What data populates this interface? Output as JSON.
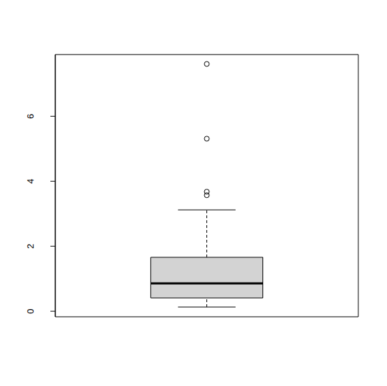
{
  "chart_data": {
    "type": "boxplot",
    "stats": {
      "min": 0.13,
      "q1": 0.41,
      "median": 0.86,
      "q3": 1.66,
      "max": 3.12
    },
    "outliers": [
      3.57,
      3.68,
      5.31,
      7.61
    ],
    "color": "#d3d3d3",
    "ylim": [
      -0.17,
      7.9
    ],
    "yticks": [
      0,
      2,
      4,
      6
    ],
    "grid": false,
    "tick_labels": "y"
  }
}
